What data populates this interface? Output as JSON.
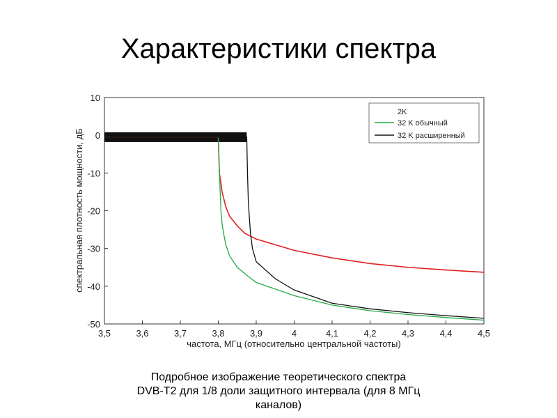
{
  "slide": {
    "title": "Характеристики спектра",
    "caption_line1": "Подробное изображение теоретического спектра",
    "caption_line2": "DVB-T2 для 1/8 доли защитного интервала (для 8 МГц",
    "caption_line3": "каналов)"
  },
  "chart_data": {
    "type": "line",
    "title": "",
    "xlabel": "частота, МГц (относительно центральной частоты)",
    "ylabel": "спектральная плотность мощности, дБ",
    "xlim": [
      3.5,
      4.5
    ],
    "ylim": [
      -50,
      10
    ],
    "x_ticks": [
      "3,5",
      "3,6",
      "3,7",
      "3,8",
      "3,9",
      "4",
      "4,1",
      "4,2",
      "4,3",
      "4,4",
      "4,5"
    ],
    "y_ticks": [
      "10",
      "0",
      "-10",
      "-20",
      "-30",
      "-40",
      "-50"
    ],
    "grid": false,
    "legend": "top-right",
    "series": [
      {
        "name": "2K",
        "color": "#e02020",
        "x": [
          3.5,
          3.8,
          3.803,
          3.806,
          3.81,
          3.815,
          3.82,
          3.83,
          3.85,
          3.87,
          3.9,
          3.95,
          4.0,
          4.1,
          4.2,
          4.3,
          4.4,
          4.5
        ],
        "y": [
          -0.5,
          -0.5,
          -10,
          -12,
          -15,
          -17,
          -19,
          -21.5,
          -24,
          -26,
          -27.5,
          -29,
          -30.5,
          -32.5,
          -34,
          -35,
          -35.7,
          -36.3
        ]
      },
      {
        "name": "32 K обычный",
        "color": "#22aa44",
        "x": [
          3.5,
          3.8,
          3.803,
          3.805,
          3.807,
          3.81,
          3.815,
          3.82,
          3.83,
          3.85,
          3.88,
          3.9,
          4.0,
          4.1,
          4.2,
          4.3,
          4.4,
          4.5
        ],
        "y": [
          -0.5,
          -0.5,
          -10,
          -15,
          -20,
          -23.5,
          -26.5,
          -29,
          -32,
          -35,
          -37.5,
          -39,
          -42.5,
          -45,
          -46.5,
          -47.5,
          -48.3,
          -49
        ]
      },
      {
        "name": "32 K расширенный",
        "color": "#111111",
        "x": [
          3.5,
          3.875,
          3.877,
          3.879,
          3.882,
          3.885,
          3.89,
          3.9,
          3.95,
          4.0,
          4.1,
          4.2,
          4.3,
          4.4,
          4.5
        ],
        "y": [
          -0.5,
          -0.5,
          -10,
          -17,
          -22,
          -26,
          -30,
          -33.5,
          -38,
          -41,
          -44.5,
          -46,
          -47,
          -47.8,
          -48.5
        ]
      }
    ]
  }
}
